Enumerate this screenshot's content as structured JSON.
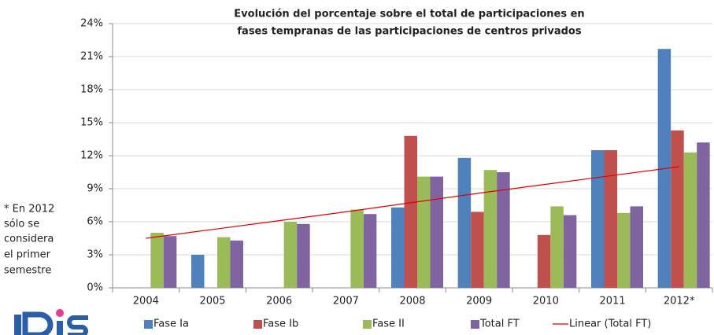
{
  "chart_data": {
    "type": "bar",
    "title": [
      "Evolución del porcentaje sobre el total de participaciones en",
      "fases tempranas de las participaciones de centros privados"
    ],
    "note": [
      "* En 2012",
      "sólo se",
      "considera",
      "el primer",
      "semestre"
    ],
    "categories": [
      "2004",
      "2005",
      "2006",
      "2007",
      "2008",
      "2009",
      "2010",
      "2011",
      "2012*"
    ],
    "series": [
      {
        "name": "Fase Ia",
        "color": "#4f81bd",
        "values": [
          0,
          3.0,
          0,
          0,
          7.3,
          11.8,
          0,
          12.5,
          21.7
        ]
      },
      {
        "name": "Fase Ib",
        "color": "#c0504d",
        "values": [
          0,
          0,
          0,
          0,
          13.8,
          6.9,
          4.8,
          12.5,
          14.3
        ]
      },
      {
        "name": "Fase II",
        "color": "#9bbb59",
        "values": [
          5.0,
          4.6,
          6.0,
          7.1,
          10.1,
          10.7,
          7.4,
          6.8,
          12.3
        ]
      },
      {
        "name": "Total FT",
        "color": "#8064a2",
        "values": [
          4.7,
          4.3,
          5.8,
          6.7,
          10.1,
          10.5,
          6.6,
          7.4,
          13.2
        ]
      }
    ],
    "trendline": {
      "name": "Linear (Total FT)",
      "color": "#e00000",
      "values": [
        4.5,
        5.3,
        6.1,
        6.9,
        7.75,
        8.6,
        9.4,
        10.2,
        11.0
      ]
    },
    "ylim": [
      0,
      24
    ],
    "yticks": [
      {
        "value": 0,
        "label": "0%"
      },
      {
        "value": 3,
        "label": "3%"
      },
      {
        "value": 6,
        "label": "6%"
      },
      {
        "value": 9,
        "label": "9%"
      },
      {
        "value": 12,
        "label": "12%"
      },
      {
        "value": 15,
        "label": "15%"
      },
      {
        "value": 18,
        "label": "18%"
      },
      {
        "value": 21,
        "label": "21%"
      },
      {
        "value": 24,
        "label": "24%"
      }
    ],
    "grid": true
  }
}
